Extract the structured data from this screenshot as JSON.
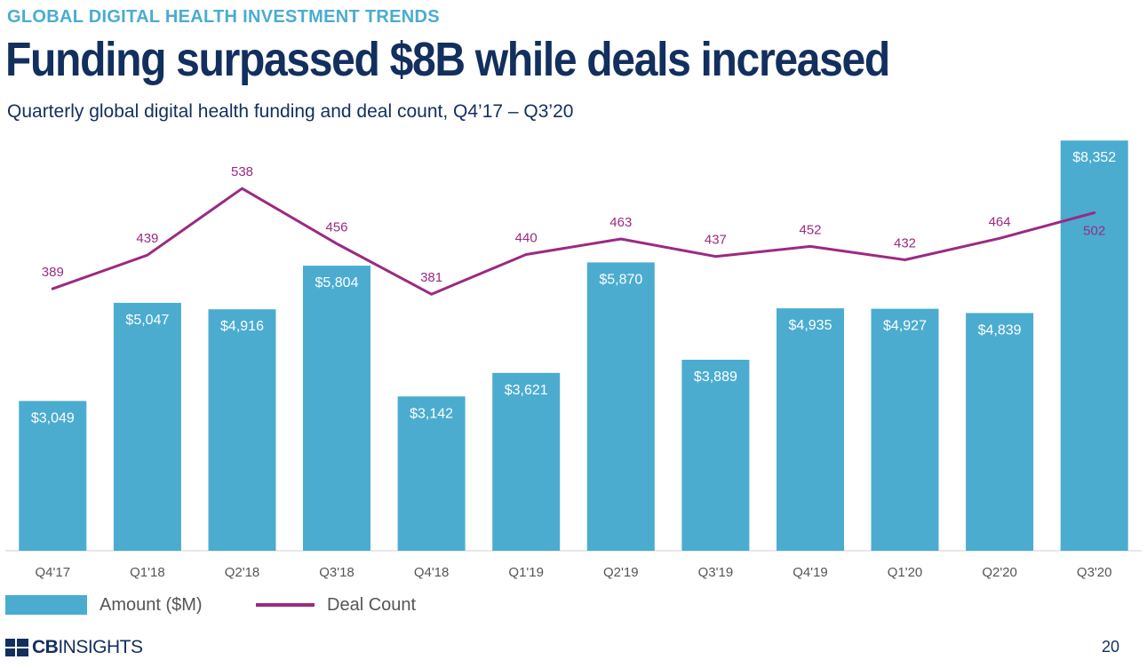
{
  "header": {
    "kicker": "GLOBAL DIGITAL HEALTH INVESTMENT TRENDS",
    "title": "Funding surpassed $8B while deals increased",
    "subtitle": "Quarterly global digital health funding and deal count, Q4’17 – Q3’20"
  },
  "chart_data": {
    "type": "bar",
    "title": "Funding surpassed $8B while deals increased",
    "subtitle": "Quarterly global digital health funding and deal count, Q4’17 – Q3’20",
    "categories": [
      "Q4'17",
      "Q1'18",
      "Q2'18",
      "Q3'18",
      "Q4'18",
      "Q1'19",
      "Q2'19",
      "Q3'19",
      "Q4'19",
      "Q1'20",
      "Q2'20",
      "Q3'20"
    ],
    "series": [
      {
        "name": "Amount ($M)",
        "type": "bar",
        "values": [
          3049,
          5047,
          4916,
          5804,
          3142,
          3621,
          5870,
          3889,
          4935,
          4927,
          4839,
          8352
        ],
        "labels": [
          "$3,049",
          "$5,047",
          "$4,916",
          "$5,804",
          "$3,142",
          "$3,621",
          "$5,870",
          "$3,889",
          "$4,935",
          "$4,927",
          "$4,839",
          "$8,352"
        ],
        "color": "#4bacd0"
      },
      {
        "name": "Deal Count",
        "type": "line",
        "values": [
          389,
          439,
          538,
          456,
          381,
          440,
          463,
          437,
          452,
          432,
          464,
          502
        ],
        "labels": [
          "389",
          "439",
          "538",
          "456",
          "381",
          "440",
          "463",
          "437",
          "452",
          "432",
          "464",
          "502"
        ],
        "color": "#9b2a82"
      }
    ],
    "ylim": [
      0,
      8500
    ],
    "ylim_secondary": [
      0,
      620
    ],
    "grid": false,
    "legend": "bottom-left"
  },
  "legend": {
    "amount_label": "Amount ($M)",
    "deals_label": "Deal Count"
  },
  "footer": {
    "logo_part1": "CB",
    "logo_part2": "INSIGHTS",
    "page_number": "20"
  }
}
